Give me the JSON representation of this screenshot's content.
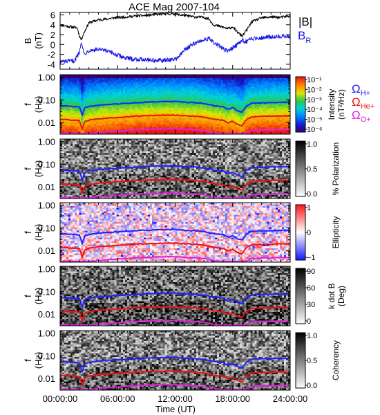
{
  "title": "ACE Mag 2007-104",
  "chart_data": {
    "type": "multi-panel spectrogram",
    "title": "ACE Mag 2007-104",
    "xlabel": "Time (UT)",
    "x_ticks": [
      "00:00:00",
      "06:00:00",
      "12:00:00",
      "18:00:00",
      "24:00:00"
    ],
    "x_range_hours": [
      0,
      24
    ],
    "top_panel": {
      "type": "line",
      "ylabel": "B",
      "yunit": "(nT)",
      "ylim": [
        -5,
        6.5
      ],
      "yticks": [
        -4,
        -2,
        0,
        2,
        4,
        6
      ],
      "legend": [
        {
          "label": "|B|",
          "color": "#000000"
        },
        {
          "label_main": "B",
          "label_sub": "R",
          "color": "#1a1ae6"
        }
      ],
      "series": [
        {
          "name": "|B|",
          "color": "#000000",
          "x": [
            0,
            1,
            1.4,
            1.8,
            2.0,
            2.2,
            2.5,
            3,
            4,
            5,
            6,
            7,
            8,
            9,
            10,
            11,
            12,
            12.5,
            13,
            14,
            15,
            15.5,
            16,
            17,
            17.5,
            18,
            18.5,
            19,
            19.5,
            20,
            21,
            22,
            23,
            24
          ],
          "y": [
            4.0,
            3.6,
            3.5,
            3.4,
            1.8,
            1.0,
            2.4,
            4.4,
            5.0,
            5.2,
            5.5,
            5.6,
            5.8,
            5.9,
            6.1,
            6.2,
            6.2,
            6.0,
            5.9,
            5.6,
            5.5,
            5.2,
            4.0,
            3.5,
            3.2,
            3.6,
            2.5,
            1.7,
            3.0,
            4.6,
            5.4,
            5.6,
            5.5,
            5.8
          ]
        },
        {
          "name": "B_R",
          "color": "#1a1ae6",
          "x": [
            0,
            1,
            1.5,
            2.0,
            2.2,
            2.5,
            3,
            4,
            5,
            6,
            7,
            8,
            9,
            10,
            11,
            12,
            12.5,
            13,
            14,
            15,
            15.5,
            16,
            17,
            17.5,
            18,
            18.5,
            19,
            19.5,
            20,
            21,
            22,
            23,
            24
          ],
          "y": [
            -3.5,
            -3.4,
            -3.3,
            -1.6,
            0.8,
            -2.0,
            -1.2,
            -1.0,
            -1.4,
            -2.2,
            -2.8,
            -3.0,
            -3.0,
            -3.3,
            -3.2,
            -3.0,
            -2.2,
            -1.0,
            0.2,
            1.0,
            1.2,
            0.4,
            -0.8,
            -1.4,
            -0.6,
            0.0,
            0.8,
            0.6,
            1.2,
            1.4,
            1.6,
            1.7,
            1.6
          ]
        }
      ]
    },
    "freq_panels": [
      {
        "id": "intensity",
        "type": "heatmap",
        "colorbar_label": "Intensity",
        "colorbar_unit": "(nT²/Hz)",
        "colorbar_ticks": [
          "10⁻¹",
          "10⁻²",
          "10⁻³",
          "10⁻⁴",
          "10⁻⁵",
          "10⁻⁶"
        ],
        "colorscale": "rainbow",
        "cyclotron_legend": true
      },
      {
        "id": "polarization",
        "type": "heatmap",
        "colorbar_label": "% Polarization",
        "colorbar_ticks": [
          "1.0",
          "0.5",
          "0.0"
        ],
        "colorscale": "gray"
      },
      {
        "id": "ellipticity",
        "type": "heatmap",
        "colorbar_label": "Ellipticity",
        "colorbar_ticks": [
          "1",
          "0",
          "−1"
        ],
        "colorscale": "blue-white-red"
      },
      {
        "id": "kdotb",
        "type": "heatmap",
        "colorbar_label": "k dot B",
        "colorbar_unit": "(Deg)",
        "colorbar_ticks": [
          "90",
          "60",
          "30",
          "0"
        ],
        "colorscale": "gray"
      },
      {
        "id": "coherency",
        "type": "heatmap",
        "colorbar_label": "Coherency",
        "colorbar_ticks": [
          "1.0",
          "0.5",
          "0.0"
        ],
        "colorscale": "gray"
      }
    ],
    "freq_axis": {
      "ylabel": "f",
      "yunit": "(Hz)",
      "scale": "log",
      "ylim": [
        0.003,
        1.3
      ],
      "yticks": [
        "1.00",
        "0.10",
        "0.01"
      ]
    },
    "cyclotron_lines": [
      {
        "species_main": "Ω",
        "species_sub": "H+",
        "color": "#2020ff",
        "x": [
          0,
          1,
          1.5,
          2.0,
          2.3,
          2.6,
          3,
          4,
          6,
          8,
          10,
          12,
          13,
          14,
          15,
          16,
          17,
          17.5,
          18,
          18.5,
          19,
          19.5,
          20,
          22,
          24
        ],
        "y": [
          0.055,
          0.052,
          0.05,
          0.048,
          0.018,
          0.045,
          0.05,
          0.058,
          0.066,
          0.075,
          0.082,
          0.085,
          0.078,
          0.075,
          0.068,
          0.055,
          0.05,
          0.038,
          0.045,
          0.032,
          0.028,
          0.055,
          0.07,
          0.075,
          0.078
        ]
      },
      {
        "species_main": "Ω",
        "species_sub": "He+",
        "color": "#ee1111",
        "x": [
          0,
          1,
          1.5,
          2.0,
          2.3,
          2.6,
          3,
          4,
          6,
          8,
          10,
          12,
          13,
          14,
          15,
          16,
          17,
          17.5,
          18,
          18.5,
          19,
          19.5,
          20,
          22,
          24
        ],
        "y": [
          0.0135,
          0.013,
          0.0125,
          0.012,
          0.0045,
          0.011,
          0.0125,
          0.0145,
          0.0165,
          0.019,
          0.0205,
          0.021,
          0.0195,
          0.019,
          0.017,
          0.0138,
          0.0125,
          0.0095,
          0.0112,
          0.008,
          0.007,
          0.0138,
          0.0175,
          0.019,
          0.0195
        ]
      },
      {
        "species_main": "Ω",
        "species_sub": "O+",
        "color": "#e020e0",
        "x": [
          0,
          1,
          1.5,
          2.0,
          2.3,
          2.6,
          3,
          4,
          6,
          8,
          10,
          12,
          13,
          14,
          15,
          16,
          17,
          17.5,
          18,
          18.5,
          19,
          19.5,
          20,
          22,
          24
        ],
        "y": [
          0.0034,
          0.0033,
          0.0032,
          0.003,
          0.003,
          0.003,
          0.0031,
          0.0036,
          0.0041,
          0.0047,
          0.0051,
          0.0053,
          0.0049,
          0.0047,
          0.0043,
          0.0035,
          0.0031,
          0.003,
          0.003,
          0.003,
          0.003,
          0.0035,
          0.0044,
          0.0047,
          0.0049
        ]
      }
    ]
  }
}
